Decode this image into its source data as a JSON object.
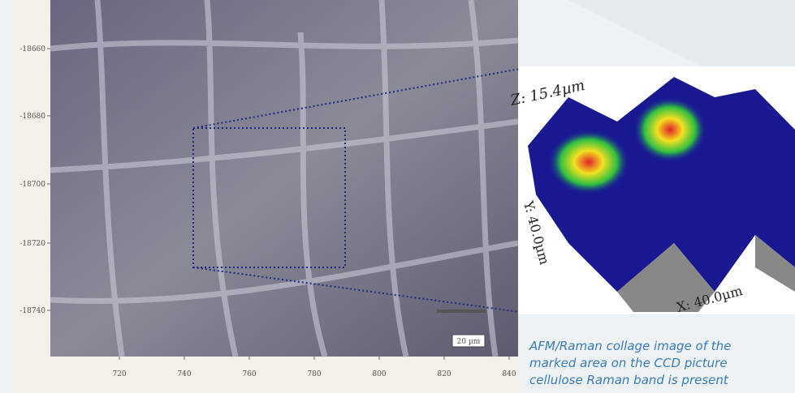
{
  "microscope_image": {
    "yticks": [
      -18660,
      -18680,
      -18700,
      -18720,
      -18740
    ],
    "xticks": [
      720,
      740,
      760,
      780,
      800,
      820,
      840
    ],
    "scale_bar": "20 µm"
  },
  "afm_image": {
    "z_label": "Z: 15.4µm",
    "y_label": "Y: 40.0µm",
    "x_label": "X: 40.0µm"
  },
  "caption": [
    "AFM/Raman collage image of the",
    "marked area on the CCD picture",
    "cellulose Raman band is present"
  ]
}
